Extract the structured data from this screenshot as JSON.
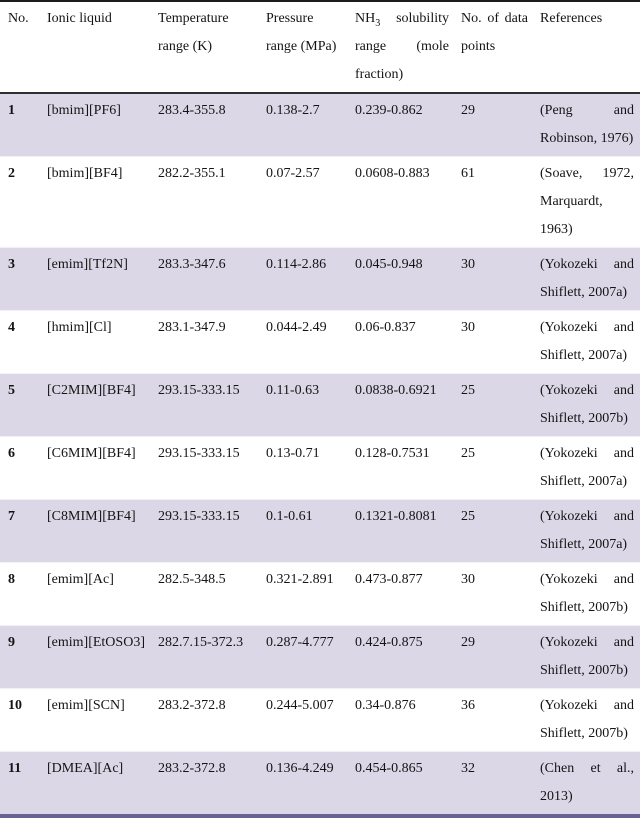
{
  "table": {
    "columns": [
      {
        "label": "No."
      },
      {
        "label": "Ionic liquid"
      },
      {
        "label": "Temperature range (K)"
      },
      {
        "label": "Pressure range (MPa)"
      },
      {
        "prefix": "NH",
        "sub": "3",
        "rest": "solubility range (mole fraction)"
      },
      {
        "label": "No. of data points"
      },
      {
        "label": "References"
      }
    ],
    "rows": [
      {
        "no": "1",
        "ionic_liquid": "[bmim][PF6]",
        "temperature_range": "283.4-355.8",
        "pressure_range": "0.138-2.7",
        "solubility_range": "0.239-0.862",
        "data_points": "29",
        "reference_lines": [
          "(Peng and",
          "Robinson, 1976)"
        ]
      },
      {
        "no": "2",
        "ionic_liquid": "[bmim][BF4]",
        "temperature_range": "282.2-355.1",
        "pressure_range": "0.07-2.57",
        "solubility_range": "0.0608-0.883",
        "data_points": "61",
        "reference_lines": [
          "(Soave, 1972,",
          "Marquardt,",
          "1963)"
        ]
      },
      {
        "no": "3",
        "ionic_liquid": "[emim][Tf2N]",
        "temperature_range": "283.3-347.6",
        "pressure_range": "0.114-2.86",
        "solubility_range": "0.045-0.948",
        "data_points": "30",
        "reference_lines": [
          "(Yokozeki and",
          "Shiflett, 2007a)"
        ]
      },
      {
        "no": "4",
        "ionic_liquid": "[hmim][Cl]",
        "temperature_range": "283.1-347.9",
        "pressure_range": "0.044-2.49",
        "solubility_range": "0.06-0.837",
        "data_points": "30",
        "reference_lines": [
          "(Yokozeki and",
          "Shiflett, 2007a)"
        ]
      },
      {
        "no": "5",
        "ionic_liquid": "[C2MIM][BF4]",
        "temperature_range": "293.15-333.15",
        "pressure_range": "0.11-0.63",
        "solubility_range": "0.0838-0.6921",
        "data_points": "25",
        "reference_lines": [
          "(Yokozeki and",
          "Shiflett, 2007b)"
        ]
      },
      {
        "no": "6",
        "ionic_liquid": "[C6MIM][BF4]",
        "temperature_range": "293.15-333.15",
        "pressure_range": "0.13-0.71",
        "solubility_range": "0.128-0.7531",
        "data_points": "25",
        "reference_lines": [
          "(Yokozeki and",
          "Shiflett, 2007a)"
        ]
      },
      {
        "no": "7",
        "ionic_liquid": "[C8MIM][BF4]",
        "temperature_range": "293.15-333.15",
        "pressure_range": "0.1-0.61",
        "solubility_range": "0.1321-0.8081",
        "data_points": "25",
        "reference_lines": [
          "(Yokozeki and",
          "Shiflett, 2007a)"
        ]
      },
      {
        "no": "8",
        "ionic_liquid": "[emim][Ac]",
        "temperature_range": "282.5-348.5",
        "pressure_range": "0.321-2.891",
        "solubility_range": "0.473-0.877",
        "data_points": "30",
        "reference_lines": [
          "(Yokozeki and",
          "Shiflett, 2007b)"
        ]
      },
      {
        "no": "9",
        "ionic_liquid": "[emim][EtOSO3]",
        "temperature_range": "282.7.15-372.3",
        "pressure_range": "0.287-4.777",
        "solubility_range": "0.424-0.875",
        "data_points": "29",
        "reference_lines": [
          "(Yokozeki and",
          "Shiflett, 2007b)"
        ]
      },
      {
        "no": "10",
        "ionic_liquid": "[emim][SCN]",
        "temperature_range": "283.2-372.8",
        "pressure_range": "0.244-5.007",
        "solubility_range": "0.34-0.876",
        "data_points": "36",
        "reference_lines": [
          "(Yokozeki and",
          "Shiflett, 2007b)"
        ]
      },
      {
        "no": "11",
        "ionic_liquid": "[DMEA][Ac]",
        "temperature_range": "283.2-372.8",
        "pressure_range": "0.136-4.249",
        "solubility_range": "0.454-0.865",
        "data_points": "32",
        "reference_lines": [
          "(Chen et al.,",
          "2013)"
        ]
      }
    ],
    "colors": {
      "row_highlight_bg": "#DCD7E6",
      "bottom_rule": "#6B6094",
      "top_rule": "#1C1C1C",
      "header_rule": "#2E2E2E"
    }
  }
}
